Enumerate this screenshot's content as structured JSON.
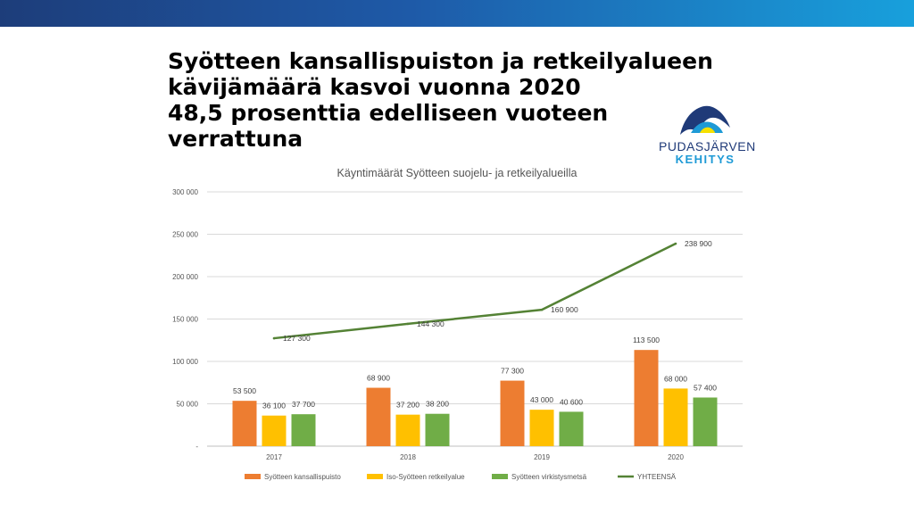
{
  "headline": [
    "Syötteen kansallispuiston ja retkeilyalueen",
    "kävijämäärä kasvoi vuonna 2020",
    "48,5 prosenttia edelliseen vuoteen",
    "verrattuna"
  ],
  "logo": {
    "line1": "PUDASJÄRVEN",
    "line2": "KEHITYS",
    "colors": {
      "dark": "#1f3a78",
      "blue": "#1e9ad6",
      "yellow": "#f6e000"
    }
  },
  "chart_data": {
    "type": "bar",
    "title": "Käyntimäärät Syötteen suojelu- ja retkeilyalueilla",
    "xlabel": "",
    "ylabel": "",
    "categories": [
      "2017",
      "2018",
      "2019",
      "2020"
    ],
    "ylim": [
      0,
      300000
    ],
    "yticks": [
      {
        "value": 0,
        "label": "-"
      },
      {
        "value": 50000,
        "label": "50 000"
      },
      {
        "value": 100000,
        "label": "100 000"
      },
      {
        "value": 150000,
        "label": "150 000"
      },
      {
        "value": 200000,
        "label": "200 000"
      },
      {
        "value": 250000,
        "label": "250 000"
      },
      {
        "value": 300000,
        "label": "300 000"
      }
    ],
    "grid": true,
    "legend_position": "bottom",
    "series": [
      {
        "name": "Syötteen kansallispuisto",
        "type": "bar",
        "color": "#ed7d31",
        "values": [
          53500,
          68900,
          77300,
          113500
        ],
        "labels": [
          "53 500",
          "68 900",
          "77 300",
          "113 500"
        ]
      },
      {
        "name": "Iso-Syötteen retkeilyalue",
        "type": "bar",
        "color": "#ffc000",
        "values": [
          36100,
          37200,
          43000,
          68000
        ],
        "labels": [
          "36 100",
          "37 200",
          "43 000",
          "68 000"
        ]
      },
      {
        "name": "Syötteen virkistysmetsä",
        "type": "bar",
        "color": "#70ad47",
        "values": [
          37700,
          38200,
          40600,
          57400
        ],
        "labels": [
          "37 700",
          "38 200",
          "40 600",
          "57 400"
        ]
      },
      {
        "name": "YHTEENSÄ",
        "type": "line",
        "color": "#548235",
        "values": [
          127300,
          144300,
          160900,
          238900
        ],
        "labels": [
          "127 300",
          "144 300",
          "160 900",
          "238 900"
        ]
      }
    ]
  }
}
